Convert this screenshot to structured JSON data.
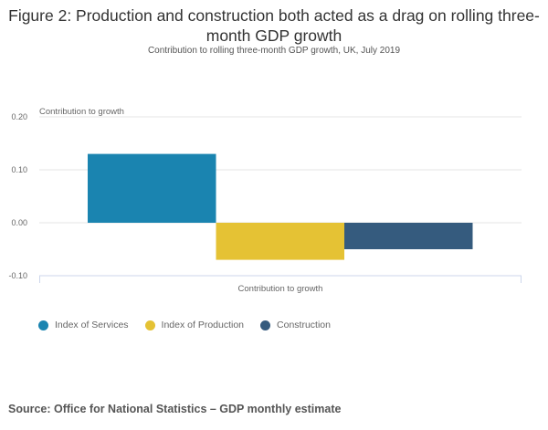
{
  "title": "Figure 2: Production and construction both acted as a drag on rolling three-month GDP growth",
  "subtitle": "Contribution to rolling three-month GDP growth, UK, July 2019",
  "source": "Source: Office for National Statistics – GDP monthly estimate",
  "chart_data": {
    "type": "bar",
    "categories": [
      "Contribution to growth"
    ],
    "series": [
      {
        "name": "Index of Services",
        "values": [
          0.13
        ],
        "color": "#1a84b0"
      },
      {
        "name": "Index of Production",
        "values": [
          -0.07
        ],
        "color": "#e5c234"
      },
      {
        "name": "Construction",
        "values": [
          -0.05
        ],
        "color": "#355b7e"
      }
    ],
    "ylabel": "Contribution to growth",
    "xlabel": "",
    "yticks": [
      "0.20",
      "0.10",
      "0.00",
      "-0.10"
    ],
    "ylim": [
      -0.1,
      0.2
    ],
    "legend": "bottom-left",
    "grid": true
  }
}
